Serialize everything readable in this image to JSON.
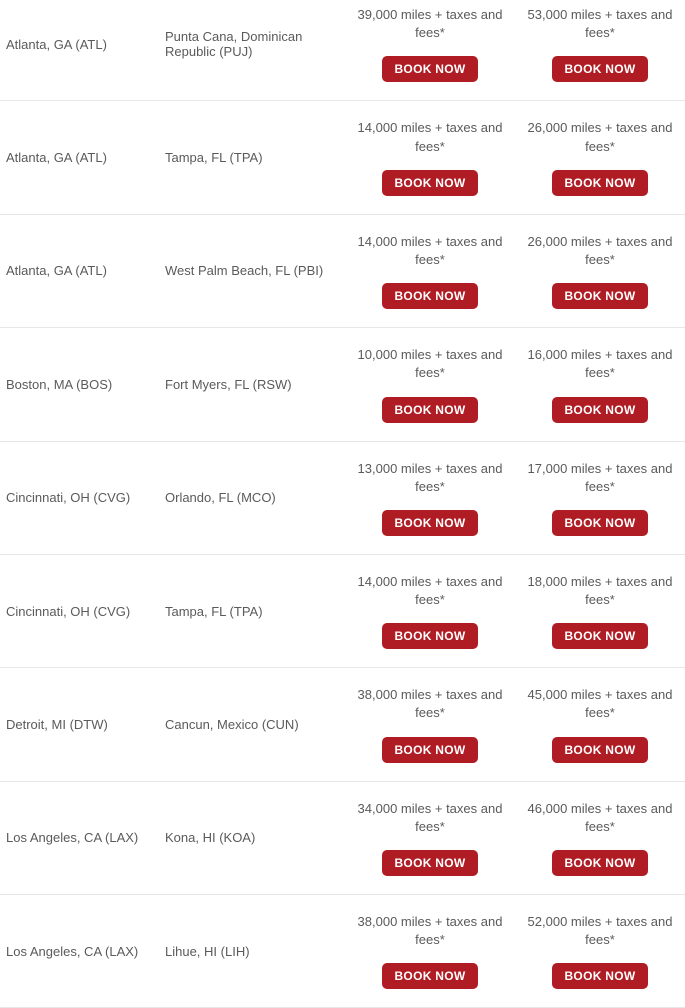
{
  "button_label": "BOOK NOW",
  "colors": {
    "button_bg": "#b01c24",
    "button_text": "#ffffff",
    "text": "#5a5a5a",
    "border": "#e7e7e7"
  },
  "routes": [
    {
      "origin": "Atlanta, GA (ATL)",
      "destination": "Punta Cana, Dominican Republic (PUJ)",
      "price1": "39,000 miles + taxes and fees*",
      "price2": "53,000 miles + taxes and fees*"
    },
    {
      "origin": "Atlanta, GA (ATL)",
      "destination": "Tampa, FL (TPA)",
      "price1": "14,000 miles + taxes and fees*",
      "price2": "26,000 miles + taxes and fees*"
    },
    {
      "origin": "Atlanta, GA (ATL)",
      "destination": "West Palm Beach, FL (PBI)",
      "price1": "14,000 miles + taxes and fees*",
      "price2": "26,000 miles + taxes and fees*"
    },
    {
      "origin": "Boston, MA (BOS)",
      "destination": "Fort Myers, FL (RSW)",
      "price1": "10,000 miles + taxes and fees*",
      "price2": "16,000 miles + taxes and fees*"
    },
    {
      "origin": "Cincinnati, OH (CVG)",
      "destination": "Orlando, FL (MCO)",
      "price1": "13,000 miles + taxes and fees*",
      "price2": "17,000 miles + taxes and fees*"
    },
    {
      "origin": "Cincinnati, OH (CVG)",
      "destination": "Tampa, FL (TPA)",
      "price1": "14,000 miles + taxes and fees*",
      "price2": "18,000 miles + taxes and fees*"
    },
    {
      "origin": "Detroit, MI (DTW)",
      "destination": "Cancun, Mexico (CUN)",
      "price1": "38,000 miles + taxes and fees*",
      "price2": "45,000 miles + taxes and fees*"
    },
    {
      "origin": "Los Angeles, CA (LAX)",
      "destination": "Kona, HI (KOA)",
      "price1": "34,000 miles + taxes and fees*",
      "price2": "46,000 miles + taxes and fees*"
    },
    {
      "origin": "Los Angeles, CA (LAX)",
      "destination": "Lihue, HI (LIH)",
      "price1": "38,000 miles + taxes and fees*",
      "price2": "52,000 miles + taxes and fees*"
    }
  ]
}
